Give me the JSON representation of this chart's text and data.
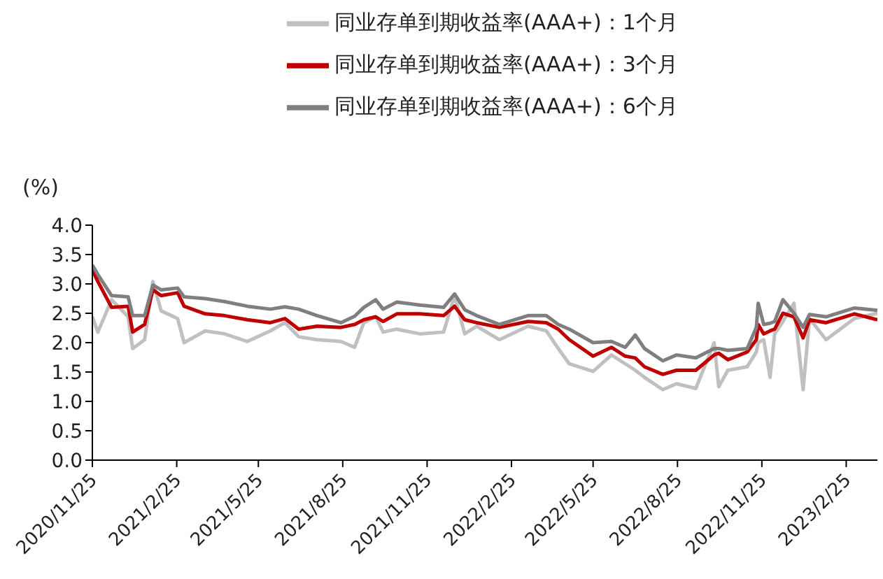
{
  "chart_data": {
    "type": "line",
    "ylabel": "(%)",
    "x": [
      "2020-11-25",
      "2020-12-01",
      "2020-12-16",
      "2021-01-03",
      "2021-01-08",
      "2021-01-21",
      "2021-01-30",
      "2021-02-08",
      "2021-02-26",
      "2021-03-05",
      "2021-03-28",
      "2021-04-18",
      "2021-05-13",
      "2021-06-07",
      "2021-06-23",
      "2021-07-08",
      "2021-07-28",
      "2021-08-23",
      "2021-09-07",
      "2021-09-17",
      "2021-09-30",
      "2021-10-08",
      "2021-10-23",
      "2021-11-17",
      "2021-12-13",
      "2021-12-25",
      "2022-01-05",
      "2022-01-18",
      "2022-02-12",
      "2022-03-15",
      "2022-04-04",
      "2022-04-17",
      "2022-04-29",
      "2022-05-25",
      "2022-06-14",
      "2022-06-29",
      "2022-07-10",
      "2022-07-20",
      "2022-08-09",
      "2022-08-24",
      "2022-09-14",
      "2022-10-04",
      "2022-10-09",
      "2022-10-19",
      "2022-11-09",
      "2022-11-19",
      "2022-11-21",
      "2022-11-27",
      "2022-12-04",
      "2022-12-09",
      "2022-12-18",
      "2022-12-30",
      "2023-01-09",
      "2023-01-16",
      "2023-02-03",
      "2023-03-06",
      "2023-03-31"
    ],
    "series": [
      {
        "name": "同业存单到期收益率(AAA+)：1个月",
        "color": "#c0c0c0",
        "values": [
          2.44,
          2.18,
          2.73,
          2.44,
          1.9,
          2.05,
          3.04,
          2.54,
          2.41,
          2.0,
          2.2,
          2.15,
          2.02,
          2.2,
          2.34,
          2.1,
          2.05,
          2.02,
          1.92,
          2.34,
          2.44,
          2.18,
          2.23,
          2.15,
          2.18,
          2.8,
          2.15,
          2.28,
          2.05,
          2.28,
          2.2,
          1.9,
          1.64,
          1.51,
          1.79,
          1.64,
          1.53,
          1.41,
          1.2,
          1.3,
          1.22,
          2.0,
          1.25,
          1.53,
          1.59,
          1.84,
          2.0,
          2.05,
          1.41,
          2.15,
          2.36,
          2.67,
          1.2,
          2.41,
          2.05,
          2.41,
          2.5
        ]
      },
      {
        "name": "同业存单到期收益率(AAA+)：3个月",
        "color": "#c00000",
        "values": [
          3.24,
          3.04,
          2.6,
          2.62,
          2.18,
          2.31,
          2.9,
          2.8,
          2.85,
          2.62,
          2.49,
          2.46,
          2.39,
          2.34,
          2.41,
          2.23,
          2.28,
          2.26,
          2.31,
          2.39,
          2.44,
          2.36,
          2.49,
          2.49,
          2.46,
          2.62,
          2.39,
          2.34,
          2.26,
          2.36,
          2.34,
          2.23,
          2.05,
          1.77,
          1.92,
          1.77,
          1.74,
          1.59,
          1.46,
          1.53,
          1.53,
          1.79,
          1.82,
          1.71,
          1.84,
          2.05,
          2.31,
          2.15,
          2.2,
          2.23,
          2.5,
          2.44,
          2.08,
          2.39,
          2.34,
          2.49,
          2.39
        ]
      },
      {
        "name": "同业存单到期收益率(AAA+)：6个月",
        "color": "#7f7f7f",
        "values": [
          3.32,
          3.16,
          2.8,
          2.78,
          2.46,
          2.46,
          2.98,
          2.9,
          2.93,
          2.78,
          2.75,
          2.7,
          2.62,
          2.57,
          2.61,
          2.57,
          2.46,
          2.34,
          2.45,
          2.6,
          2.73,
          2.57,
          2.69,
          2.64,
          2.6,
          2.83,
          2.56,
          2.46,
          2.31,
          2.46,
          2.46,
          2.31,
          2.23,
          2.0,
          2.02,
          1.92,
          2.13,
          1.9,
          1.69,
          1.79,
          1.74,
          1.9,
          1.9,
          1.87,
          1.9,
          2.26,
          2.67,
          2.31,
          2.33,
          2.36,
          2.73,
          2.5,
          2.26,
          2.48,
          2.44,
          2.59,
          2.55
        ]
      }
    ],
    "xlim": [
      "2020-11-25",
      "2023-03-31"
    ],
    "xticks": [
      {
        "value": "2020-11-25",
        "label": "2020/11/25"
      },
      {
        "value": "2021-02-25",
        "label": "2021/2/25"
      },
      {
        "value": "2021-05-25",
        "label": "2021/5/25"
      },
      {
        "value": "2021-08-25",
        "label": "2021/8/25"
      },
      {
        "value": "2021-11-25",
        "label": "2021/11/25"
      },
      {
        "value": "2022-02-25",
        "label": "2022/2/25"
      },
      {
        "value": "2022-05-25",
        "label": "2022/5/25"
      },
      {
        "value": "2022-08-25",
        "label": "2022/8/25"
      },
      {
        "value": "2022-11-25",
        "label": "2022/11/25"
      },
      {
        "value": "2023-02-25",
        "label": "2023/2/25"
      }
    ],
    "ylim": [
      0,
      4
    ],
    "yticks": [
      {
        "value": 0,
        "label": "0.0"
      },
      {
        "value": 0.5,
        "label": "0.5"
      },
      {
        "value": 1,
        "label": "1.0"
      },
      {
        "value": 1.5,
        "label": "1.5"
      },
      {
        "value": 2,
        "label": "2.0"
      },
      {
        "value": 2.5,
        "label": "2.5"
      },
      {
        "value": 3,
        "label": "3.0"
      },
      {
        "value": 3.5,
        "label": "3.5"
      },
      {
        "value": 4,
        "label": "4.0"
      }
    ],
    "grid": false,
    "legend": "top",
    "marker": "none"
  }
}
